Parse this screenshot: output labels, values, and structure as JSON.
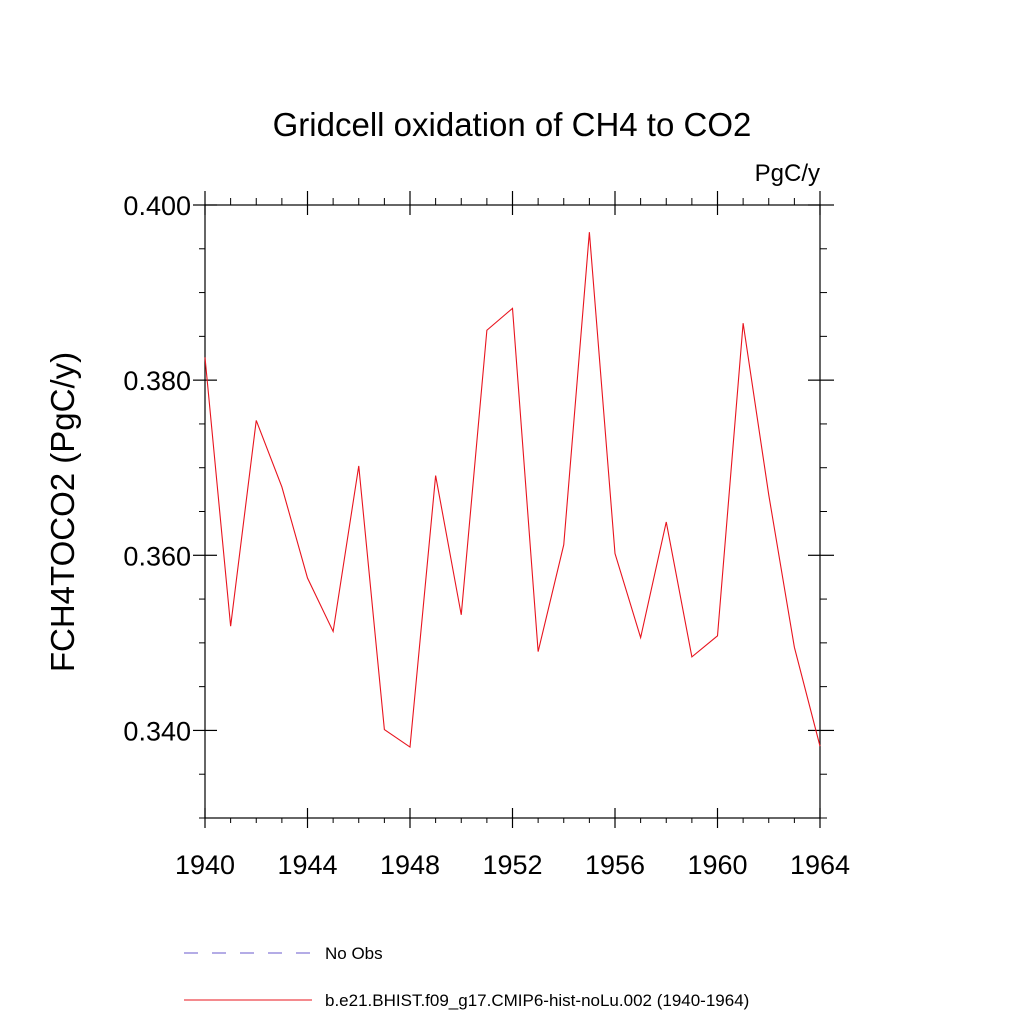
{
  "chart_data": {
    "type": "line",
    "title": "Gridcell oxidation of CH4 to CO2",
    "units": "PgC/y",
    "ylabel": "FCH4TOCO2  (PgC/y)",
    "xlabel": "",
    "xlim": [
      1940,
      1964
    ],
    "ylim": [
      0.33,
      0.4
    ],
    "x_ticks": [
      1940,
      1944,
      1948,
      1952,
      1956,
      1960,
      1964
    ],
    "x_tick_labels": [
      "1940",
      "1944",
      "1948",
      "1952",
      "1956",
      "1960",
      "1964"
    ],
    "y_ticks": [
      0.34,
      0.36,
      0.38,
      0.4
    ],
    "y_tick_labels": [
      "0.340",
      "0.360",
      "0.380",
      "0.400"
    ],
    "x": [
      1940,
      1941,
      1942,
      1943,
      1944,
      1945,
      1946,
      1947,
      1948,
      1949,
      1950,
      1951,
      1952,
      1953,
      1954,
      1955,
      1956,
      1957,
      1958,
      1959,
      1960,
      1961,
      1962,
      1963,
      1964
    ],
    "series": [
      {
        "name": "b.e21.BHIST.f09_g17.CMIP6-hist-noLu.002 (1940-1964)",
        "color": "#e8141e",
        "style": "solid",
        "values": [
          0.3826,
          0.3519,
          0.3754,
          0.3678,
          0.3574,
          0.3513,
          0.3702,
          0.3401,
          0.3381,
          0.3691,
          0.3532,
          0.3857,
          0.3882,
          0.349,
          0.3612,
          0.3969,
          0.3602,
          0.3506,
          0.3638,
          0.3484,
          0.3508,
          0.3865,
          0.3669,
          0.3495,
          0.3382
        ]
      }
    ],
    "legend": {
      "placement": "bottom",
      "entries": [
        {
          "label": "No Obs",
          "color": "#6a5acd",
          "style": "dashed"
        },
        {
          "label": "b.e21.BHIST.f09_g17.CMIP6-hist-noLu.002 (1940-1964)",
          "color": "#e8141e",
          "style": "solid"
        }
      ]
    },
    "grid": false
  }
}
